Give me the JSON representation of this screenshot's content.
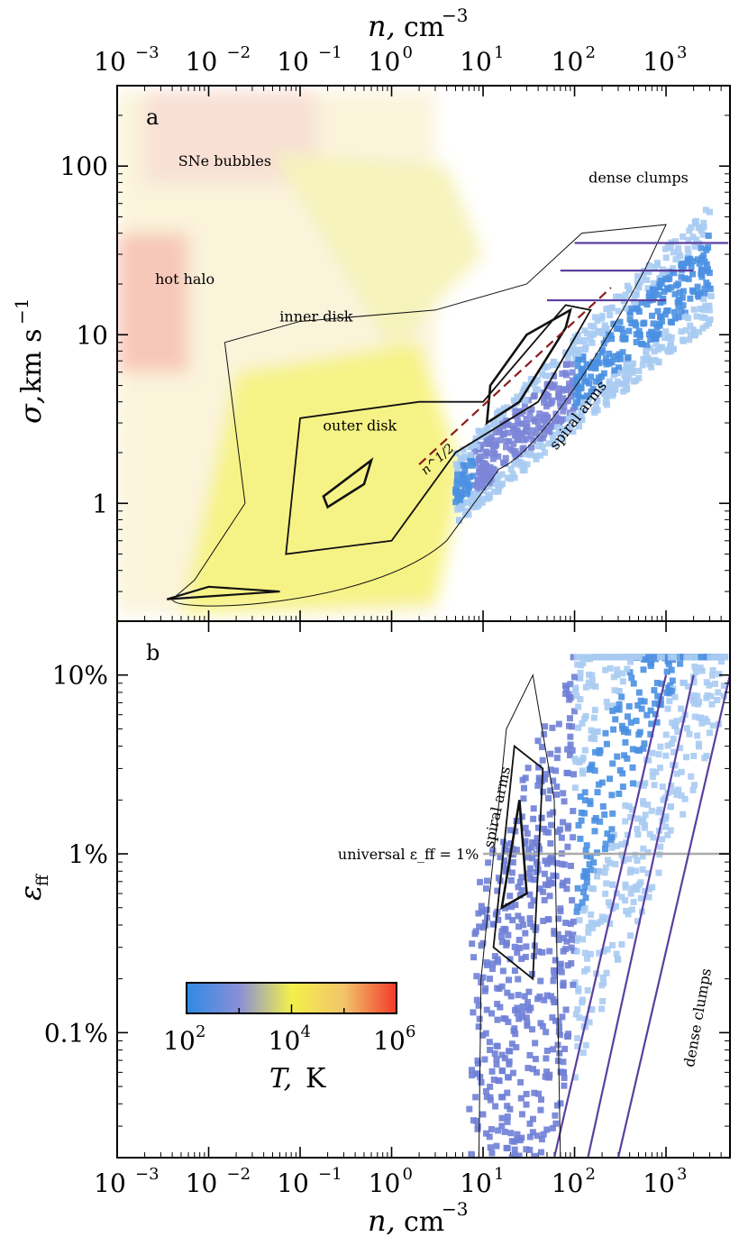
{
  "chart_data": [
    {
      "type": "heatmap",
      "panel": "a",
      "xlabel": "n, cm^-3",
      "ylabel": "σ, km s^-1",
      "xscale": "log",
      "yscale": "log",
      "xlim": [
        0.001,
        5000
      ],
      "ylim": [
        0.2,
        300
      ],
      "x_ticks": [
        "10^-3",
        "10^-2",
        "10^-1",
        "10^0",
        "10^1",
        "10^2",
        "10^3"
      ],
      "y_ticks": [
        "1",
        "10",
        "100"
      ],
      "annotations": [
        "SNe bubbles",
        "hot halo",
        "inner disk",
        "outer disk",
        "dense clumps",
        "spiral arms"
      ],
      "regions": [
        {
          "name": "hot halo",
          "n_range": [
            0.001,
            0.01
          ],
          "sigma_range": [
            8,
            40
          ],
          "T": 1000000
        },
        {
          "name": "SNe bubbles",
          "n_range": [
            0.002,
            0.5
          ],
          "sigma_range": [
            40,
            250
          ],
          "T": 100000
        },
        {
          "name": "outer disk",
          "n_range": [
            0.05,
            1
          ],
          "sigma_range": [
            0.5,
            3
          ],
          "T": 10000
        },
        {
          "name": "spiral arms",
          "n_range": [
            10,
            100
          ],
          "sigma_range": [
            2.5,
            15
          ],
          "T": 100
        },
        {
          "name": "dense clumps",
          "n_range": [
            100,
            3000
          ],
          "sigma_range": [
            15,
            50
          ],
          "T": 100
        }
      ],
      "trend_line": {
        "label": "n^{1/2}",
        "slope": 0.5,
        "x_range": [
          2,
          250
        ],
        "y_at_x1": 1.7,
        "x1": 2
      },
      "horizontal_segments": [
        {
          "sigma": 16,
          "x_range": [
            50,
            1000
          ]
        },
        {
          "sigma": 24,
          "x_range": [
            70,
            2000
          ]
        },
        {
          "sigma": 35,
          "x_range": [
            100,
            4800
          ]
        }
      ],
      "colorbar": {
        "label": "T, K",
        "scale": "log",
        "range": [
          100,
          1000000
        ],
        "ticks": [
          "10^2",
          "10^4",
          "10^6"
        ]
      }
    },
    {
      "type": "heatmap",
      "panel": "b",
      "xlabel": "n, cm^-3",
      "ylabel": "ε_ff",
      "xscale": "log",
      "yscale": "log",
      "xlim": [
        0.001,
        5000
      ],
      "ylim": [
        0.0002,
        0.2
      ],
      "x_ticks": [
        "10^-3",
        "10^-2",
        "10^-1",
        "10^0",
        "10^1",
        "10^2",
        "10^3"
      ],
      "y_ticks": [
        "0.1%",
        "1%",
        "10%"
      ],
      "annotations": [
        "spiral arms",
        "dense clumps"
      ],
      "universal_line": {
        "label": "universal ε_ff = 1%",
        "value": 0.01
      },
      "curves_endpoints": [
        {
          "n_start": 60,
          "n_end": 1000
        },
        {
          "n_start": 140,
          "n_end": 2000
        },
        {
          "n_start": 300,
          "n_end": 5000
        }
      ]
    }
  ]
}
